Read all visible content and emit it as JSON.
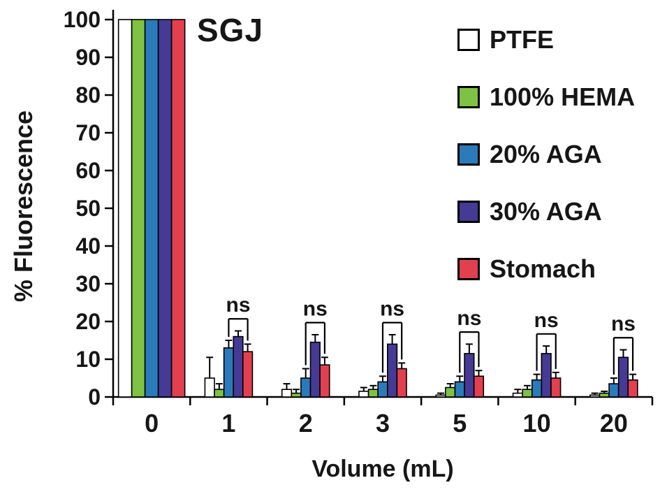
{
  "chart_data": {
    "type": "bar",
    "title": "SGJ",
    "xlabel": "Volume (mL)",
    "ylabel": "% Fluorescence",
    "categories": [
      "0",
      "1",
      "2",
      "3",
      "5",
      "10",
      "20"
    ],
    "ylim": [
      0,
      100
    ],
    "ytick_step": 10,
    "grid": false,
    "legend_position": "upper right",
    "series": [
      {
        "name": "PTFE",
        "color": "#FFFFFF",
        "values": [
          100,
          5,
          2,
          1.5,
          0.5,
          1,
          0.5
        ],
        "errors": [
          0,
          5.5,
          1.5,
          1,
          0.5,
          1,
          0.5
        ]
      },
      {
        "name": "100% HEMA",
        "color": "#7DC242",
        "values": [
          100,
          2,
          1,
          2,
          2.5,
          2,
          1
        ],
        "errors": [
          0,
          1.5,
          1,
          1,
          1,
          1,
          0.5
        ]
      },
      {
        "name": "20% AGA",
        "color": "#2B7BBA",
        "values": [
          100,
          13,
          5,
          4,
          4,
          4.5,
          3.5
        ],
        "errors": [
          0,
          2,
          2.5,
          1.5,
          1.5,
          1.5,
          1.5
        ]
      },
      {
        "name": "30% AGA",
        "color": "#453A94",
        "values": [
          100,
          16,
          14.5,
          14,
          11.5,
          11.5,
          10.5
        ],
        "errors": [
          0,
          1.5,
          2,
          2.5,
          2.5,
          2,
          2
        ]
      },
      {
        "name": "Stomach",
        "color": "#E3404F",
        "values": [
          100,
          12,
          8.5,
          7.5,
          5.5,
          5,
          4.5
        ],
        "errors": [
          0,
          2,
          2,
          1.5,
          1.5,
          1.5,
          1.5
        ]
      }
    ],
    "annotations": {
      "label": "ns",
      "groups": [
        "1",
        "2",
        "3",
        "5",
        "10",
        "20"
      ],
      "span_series": [
        "20% AGA",
        "Stomach"
      ]
    }
  }
}
